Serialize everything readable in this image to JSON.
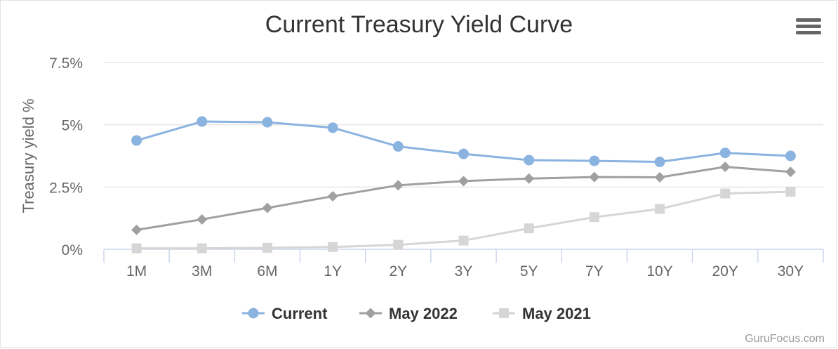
{
  "chart_data": {
    "type": "line",
    "title": "Current Treasury Yield Curve",
    "ylabel": "Treasury yield %",
    "xlabel": "",
    "categories": [
      "1M",
      "3M",
      "6M",
      "1Y",
      "2Y",
      "3Y",
      "5Y",
      "7Y",
      "10Y",
      "20Y",
      "30Y"
    ],
    "ylim": [
      0,
      7.5
    ],
    "yticks": [
      0,
      2.5,
      5,
      7.5
    ],
    "ytick_labels": [
      "0%",
      "2.5%",
      "5%",
      "7.5%"
    ],
    "grid": true,
    "legend_position": "bottom",
    "series": [
      {
        "name": "Current",
        "marker": "circle",
        "color": "#8bb3e0",
        "values": [
          4.37,
          5.13,
          5.1,
          4.88,
          4.13,
          3.83,
          3.58,
          3.55,
          3.51,
          3.87,
          3.75
        ]
      },
      {
        "name": "May 2022",
        "marker": "diamond",
        "color": "#a0a0a0",
        "values": [
          0.78,
          1.2,
          1.66,
          2.13,
          2.57,
          2.74,
          2.84,
          2.9,
          2.89,
          3.31,
          3.11
        ]
      },
      {
        "name": "May 2021",
        "marker": "square",
        "color": "#d6d6d6",
        "values": [
          0.04,
          0.04,
          0.06,
          0.09,
          0.18,
          0.35,
          0.84,
          1.29,
          1.62,
          2.24,
          2.31
        ]
      }
    ]
  },
  "watermark": "GuruFocus.com",
  "menu_icon": "hamburger-menu-icon"
}
